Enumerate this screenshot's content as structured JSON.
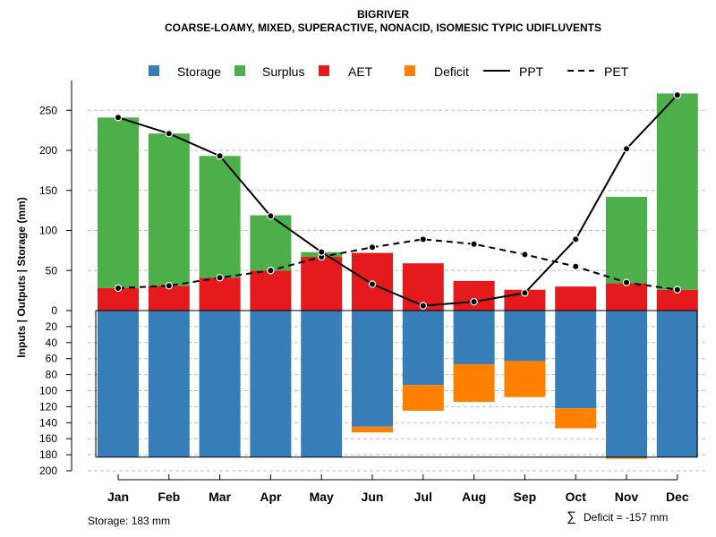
{
  "chart_data": {
    "type": "bar",
    "title": "BIGRIVER",
    "subtitle": "COARSE-LOAMY, MIXED, SUPERACTIVE, NONACID, ISOMESIC TYPIC UDIFLUVENTS",
    "ylabel": "Inputs | Outputs | Storage    (mm)",
    "categories": [
      "Jan",
      "Feb",
      "Mar",
      "Apr",
      "May",
      "Jun",
      "Jul",
      "Aug",
      "Sep",
      "Oct",
      "Nov",
      "Dec"
    ],
    "upper_ticks": [
      0,
      50,
      100,
      150,
      200,
      250
    ],
    "lower_ticks": [
      0,
      20,
      40,
      60,
      80,
      100,
      120,
      140,
      160,
      180,
      200
    ],
    "ylim_upper": [
      0,
      270
    ],
    "ylim_lower": [
      0,
      200
    ],
    "storage_capacity": 183,
    "series": [
      {
        "name": "Storage",
        "color": "#377EB8",
        "values": [
          183,
          183,
          183,
          183,
          183,
          145,
          93,
          67,
          63,
          122,
          183,
          183
        ]
      },
      {
        "name": "Surplus",
        "color": "#4DAF4A",
        "values": [
          213,
          190,
          152,
          69,
          6,
          0,
          0,
          0,
          0,
          0,
          108,
          245
        ]
      },
      {
        "name": "AET",
        "color": "#E41A1C",
        "values": [
          28,
          31,
          41,
          50,
          67,
          72,
          59,
          37,
          26,
          30,
          34,
          26
        ]
      },
      {
        "name": "Deficit",
        "color": "#FF7F00",
        "values": [
          0,
          0,
          0,
          0,
          0,
          7,
          32,
          47,
          45,
          25,
          2,
          0
        ]
      },
      {
        "name": "PPT",
        "color": "#000000",
        "style": "solid",
        "values": [
          241,
          221,
          193,
          118,
          73,
          33,
          6,
          11,
          22,
          89,
          202,
          269
        ]
      },
      {
        "name": "PET",
        "color": "#000000",
        "style": "dashed",
        "values": [
          28,
          31,
          41,
          50,
          67,
          79,
          89,
          83,
          70,
          55,
          35,
          26
        ]
      }
    ],
    "legend_order": [
      "Storage",
      "Surplus",
      "AET",
      "Deficit",
      "PPT",
      "PET"
    ],
    "legend_position": "top-center",
    "footer_left": "Storage: 183 mm",
    "footer_right": "Deficit = -157 mm",
    "footer_right_symbol": "∑"
  }
}
